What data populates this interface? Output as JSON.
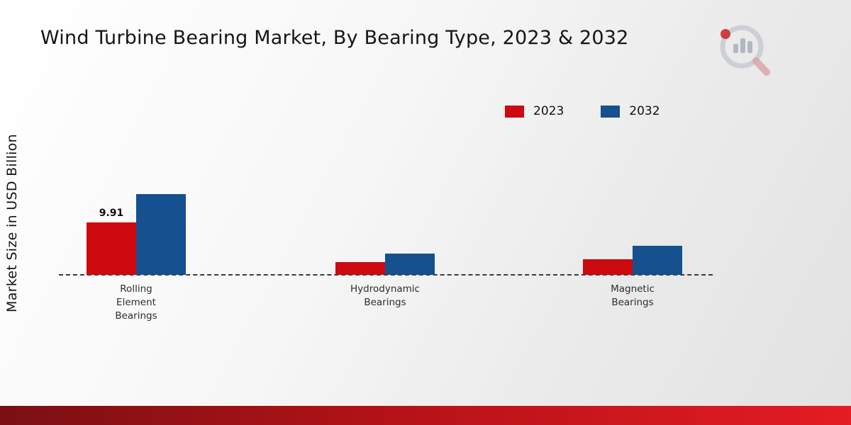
{
  "title": "Wind Turbine Bearing Market, By Bearing Type, 2023 & 2032",
  "ylabel": "Market Size in USD Billion",
  "legend": [
    {
      "label": "2023",
      "color": "#cc0a10"
    },
    {
      "label": "2032",
      "color": "#15508f"
    }
  ],
  "chart_data": {
    "type": "bar",
    "title": "Wind Turbine Bearing Market, By Bearing Type, 2023 & 2032",
    "xlabel": "",
    "ylabel": "Market Size in USD Billion",
    "categories": [
      "Rolling Element Bearings",
      "Hydrodynamic Bearings",
      "Magnetic Bearings"
    ],
    "category_label_lines": [
      [
        "Rolling",
        "Element",
        "Bearings"
      ],
      [
        "Hydrodynamic",
        "Bearings"
      ],
      [
        "Magnetic",
        "Bearings"
      ]
    ],
    "series": [
      {
        "name": "2023",
        "color": "#cc0a10",
        "values": [
          9.91,
          2.4,
          3.0
        ]
      },
      {
        "name": "2032",
        "color": "#15508f",
        "values": [
          15.3,
          4.0,
          5.5
        ]
      }
    ],
    "data_labels": {
      "2023": [
        "9.91",
        null,
        null
      ],
      "2032": [
        null,
        null,
        null
      ]
    },
    "ylim": [
      0,
      28
    ],
    "grid": false,
    "baseline": "dashed",
    "legend_position": "top-right"
  }
}
